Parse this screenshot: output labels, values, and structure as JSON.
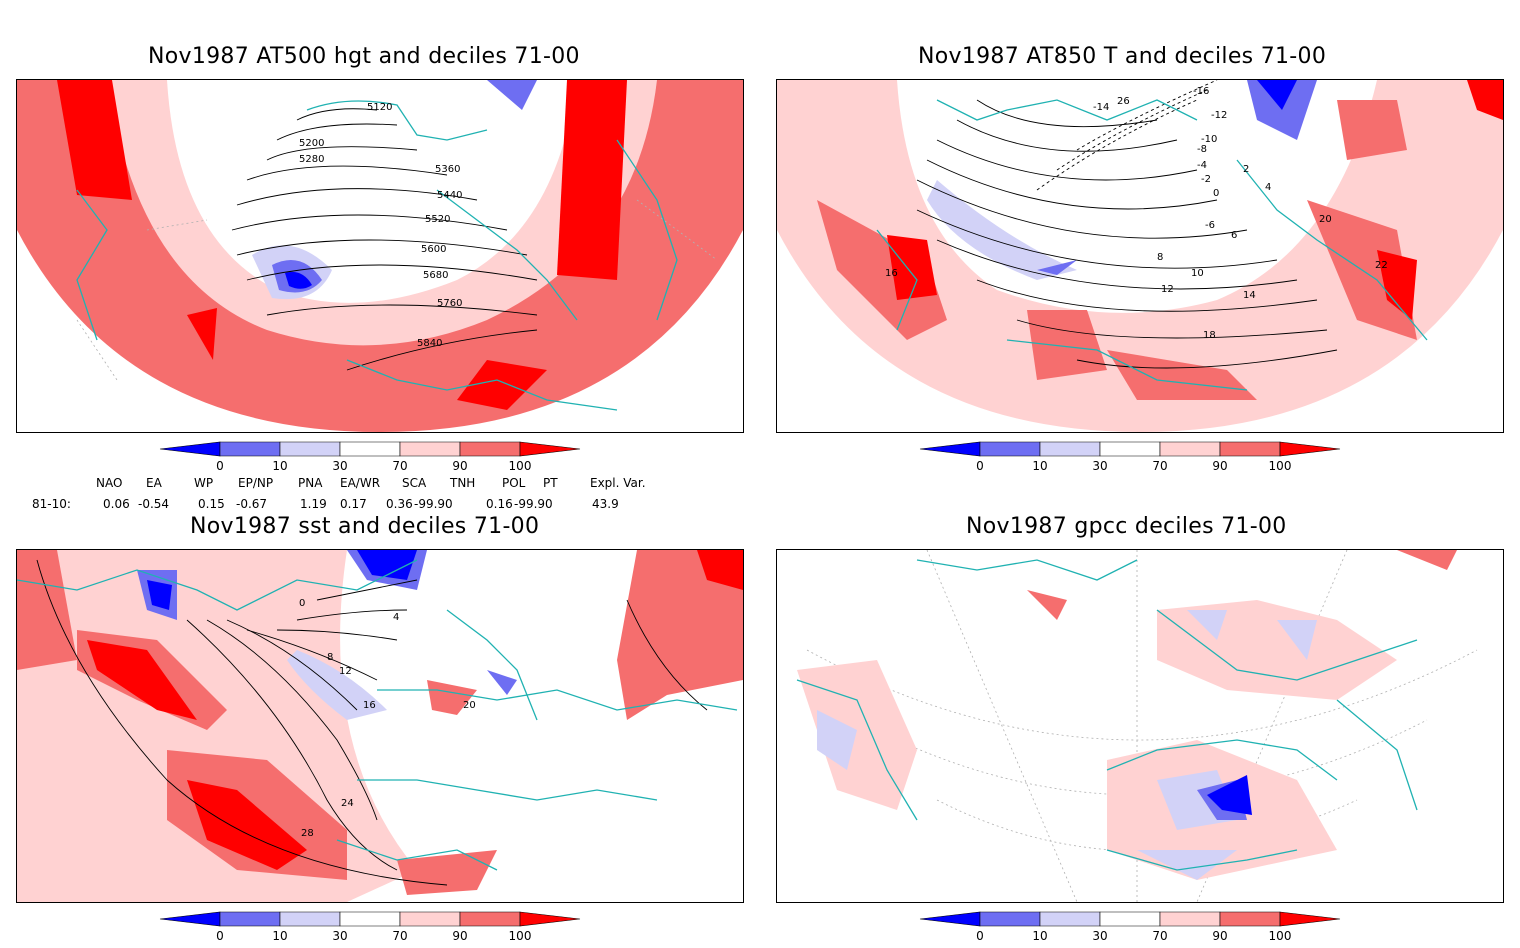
{
  "panels": [
    {
      "id": "p1",
      "title": "Nov1987 AT500 hgt and deciles 71-00",
      "contour_labels": [
        "5120",
        "5200",
        "5280",
        "5360",
        "5440",
        "5520",
        "5600",
        "5680",
        "5760",
        "5840"
      ]
    },
    {
      "id": "p2",
      "title": "Nov1987 AT850 T and deciles 71-00",
      "contour_labels": [
        "-16",
        "-14",
        "-12",
        "-10",
        "-8",
        "-6",
        "-4",
        "-2",
        "0",
        "2",
        "4",
        "6",
        "8",
        "10",
        "12",
        "14",
        "16",
        "18",
        "20",
        "22",
        "26"
      ]
    },
    {
      "id": "p3",
      "title": "Nov1987 sst and deciles 71-00",
      "contour_labels": [
        "0",
        "4",
        "8",
        "12",
        "16",
        "20",
        "24",
        "28"
      ]
    },
    {
      "id": "p4",
      "title": "Nov1987 gpcc deciles 71-00",
      "contour_labels": []
    }
  ],
  "colorbar": {
    "ticks": [
      "0",
      "10",
      "30",
      "70",
      "90",
      "100"
    ],
    "colors": [
      "#0000ff",
      "#6e6ef2",
      "#d2d2f7",
      "#ffffff",
      "#ffd2d2",
      "#f56e6e",
      "#ff0000"
    ]
  },
  "indices": {
    "headers": [
      "NAO",
      "EA",
      "WP",
      "EP/NP",
      "PNA",
      "EA/WR",
      "SCA",
      "TNH",
      "POL",
      "PT",
      "Expl. Var."
    ],
    "row_label": "81-10:",
    "values": [
      "0.06",
      "-0.54",
      "0.15",
      "-0.67",
      "1.19",
      "0.17",
      "0.36",
      "-99.90",
      "0.16",
      "-99.90",
      "43.9"
    ]
  },
  "colors": {
    "coast": "#20b2b2",
    "contour": "#000000",
    "grid": "#b0b0b0"
  }
}
